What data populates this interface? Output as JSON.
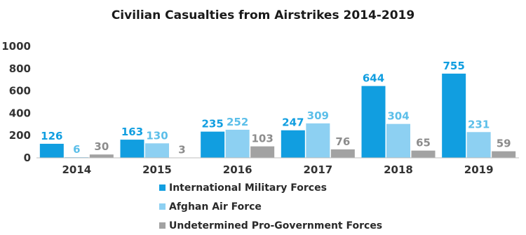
{
  "chart_data": {
    "type": "bar",
    "title": "Civilian Casualties from Airstrikes 2014-2019",
    "categories": [
      "2014",
      "2015",
      "2016",
      "2017",
      "2018",
      "2019"
    ],
    "series": [
      {
        "name": "International Military Forces",
        "color": "#119ee0",
        "label_color": "#119ee0",
        "values": [
          126,
          163,
          235,
          247,
          644,
          755
        ]
      },
      {
        "name": "Afghan Air Force",
        "color": "#8dd0f2",
        "label_color": "#5cbfe9",
        "values": [
          6,
          130,
          252,
          309,
          304,
          231
        ]
      },
      {
        "name": "Undetermined Pro-Government Forces",
        "color": "#a2a2a2",
        "label_color": "#8c8c8c",
        "values": [
          30,
          3,
          103,
          76,
          65,
          59
        ]
      }
    ],
    "yticks": [
      "0",
      "200",
      "400",
      "600",
      "800",
      "1000"
    ],
    "ylim": [
      0,
      1000
    ],
    "grid": false,
    "legend_position": "bottom"
  }
}
